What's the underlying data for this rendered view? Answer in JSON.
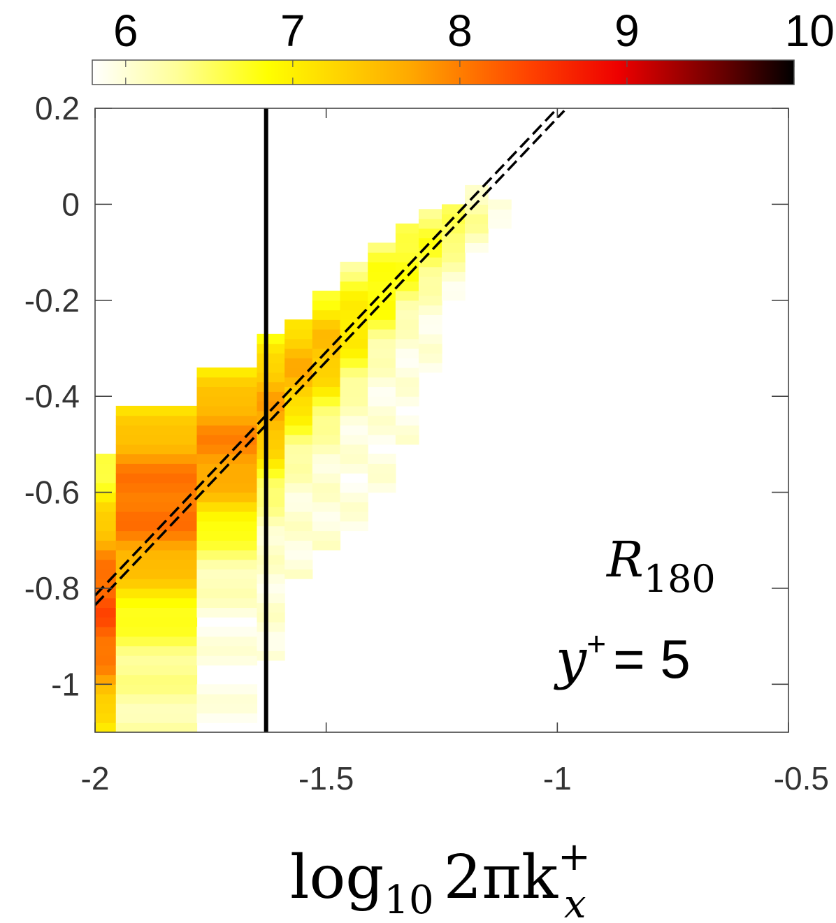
{
  "chart_data": {
    "type": "heatmap",
    "title": "",
    "xlabel": "log10 2πk_x^+",
    "ylabel": "",
    "xlim": [
      -2,
      -0.5
    ],
    "ylim": [
      -1.1,
      0.2
    ],
    "x_ticks": [
      "-2",
      "-1.5",
      "-1",
      "-0.5"
    ],
    "x_tick_values": [
      -2,
      -1.5,
      -1,
      -0.5
    ],
    "y_ticks": [
      "0.2",
      "0",
      "-0.2",
      "-0.4",
      "-0.6",
      "-0.8",
      "-1"
    ],
    "y_tick_values": [
      0.2,
      0,
      -0.2,
      -0.4,
      -0.6,
      -0.8,
      -1
    ],
    "colorbar": {
      "range": [
        5.8,
        10
      ],
      "ticks": [
        "6",
        "7",
        "8",
        "9",
        "10"
      ],
      "tick_values": [
        6,
        7,
        8,
        9,
        10
      ],
      "colormap": "hot-reversed"
    },
    "annotations": {
      "case": "R",
      "case_sub": "180",
      "yplus_var": "y",
      "yplus_sup": "+",
      "yplus_eq": "= 5"
    },
    "xlabel_parts": {
      "log": "log",
      "log_sub": "10",
      "body": "2πk",
      "sup": "+",
      "sub": "x"
    },
    "vertical_line_x": -1.63,
    "dashed_lines": [
      {
        "x": [
          -2,
          -0.995
        ],
        "y": [
          -0.815,
          0.205
        ]
      },
      {
        "x": [
          -2,
          -0.985
        ],
        "y": [
          -0.835,
          0.195
        ]
      }
    ],
    "columns": [
      {
        "x0": -2.0,
        "x1": -1.955,
        "y_min": -1.1,
        "y_max": -0.53,
        "peak_y": -0.85,
        "peak": 8.3,
        "edge": 6.1,
        "width": 0.25
      },
      {
        "x0": -1.955,
        "x1": -1.78,
        "y_min": -1.1,
        "y_max": -0.43,
        "peak_y": -0.62,
        "peak": 8.1,
        "edge": 6.2,
        "width": 0.22
      },
      {
        "x0": -1.78,
        "x1": -1.65,
        "y_min": -1.1,
        "y_max": -0.34,
        "peak_y": -0.5,
        "peak": 7.9,
        "edge": 5.9,
        "width": 0.2
      },
      {
        "x0": -1.65,
        "x1": -1.59,
        "y_min": -0.95,
        "y_max": -0.28,
        "peak_y": -0.42,
        "peak": 7.7,
        "edge": 6.0,
        "width": 0.16
      },
      {
        "x0": -1.59,
        "x1": -1.53,
        "y_min": -0.78,
        "y_max": -0.25,
        "peak_y": -0.34,
        "peak": 7.6,
        "edge": 6.0,
        "width": 0.14
      },
      {
        "x0": -1.53,
        "x1": -1.47,
        "y_min": -0.72,
        "y_max": -0.18,
        "peak_y": -0.3,
        "peak": 7.5,
        "edge": 6.0,
        "width": 0.13
      },
      {
        "x0": -1.47,
        "x1": -1.41,
        "y_min": -0.68,
        "y_max": -0.13,
        "peak_y": -0.25,
        "peak": 7.1,
        "edge": 5.95,
        "width": 0.12
      },
      {
        "x0": -1.41,
        "x1": -1.35,
        "y_min": -0.6,
        "y_max": -0.08,
        "peak_y": -0.18,
        "peak": 6.9,
        "edge": 5.95,
        "width": 0.11
      },
      {
        "x0": -1.35,
        "x1": -1.3,
        "y_min": -0.5,
        "y_max": -0.05,
        "peak_y": -0.12,
        "peak": 6.8,
        "edge": 5.95,
        "width": 0.1
      },
      {
        "x0": -1.3,
        "x1": -1.25,
        "y_min": -0.35,
        "y_max": -0.02,
        "peak_y": -0.08,
        "peak": 6.7,
        "edge": 5.95,
        "width": 0.09
      },
      {
        "x0": -1.25,
        "x1": -1.2,
        "y_min": -0.2,
        "y_max": 0.0,
        "peak_y": -0.05,
        "peak": 6.6,
        "edge": 5.95,
        "width": 0.07
      },
      {
        "x0": -1.2,
        "x1": -1.15,
        "y_min": -0.12,
        "y_max": 0.03,
        "peak_y": -0.02,
        "peak": 6.3,
        "edge": 5.9,
        "width": 0.06
      },
      {
        "x0": -1.15,
        "x1": -1.1,
        "y_min": -0.05,
        "y_max": 0.0,
        "peak_y": -0.02,
        "peak": 6.0,
        "edge": 5.85,
        "width": 0.05
      }
    ]
  }
}
